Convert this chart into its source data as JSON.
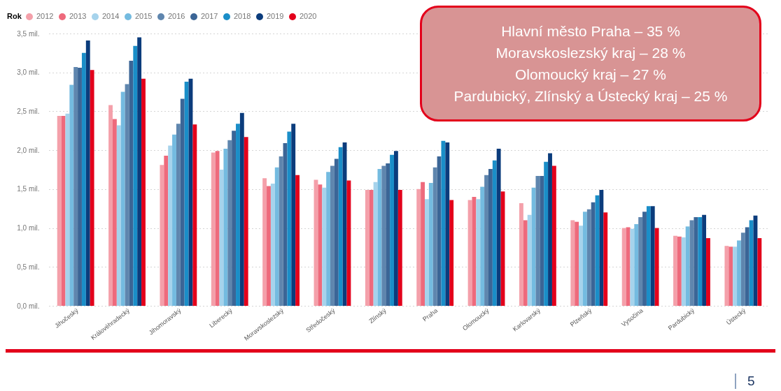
{
  "chart_data": {
    "type": "bar",
    "legend_title": "Rok",
    "legend": "top left",
    "grid": "y",
    "categories": [
      "Jihočeský",
      "Královéhradecký",
      "Jihomoravský",
      "Liberecký",
      "Moravskoslezský",
      "Středočeský",
      "Zlínský",
      "Praha",
      "Olomoucký",
      "Karlovarský",
      "Plzeňský",
      "Vysočina",
      "Pardubický",
      "Ústecký"
    ],
    "ylim": [
      0,
      3.5
    ],
    "yticks": [
      {
        "value": 0,
        "label": "0,0 mil."
      },
      {
        "value": 0.5,
        "label": "0,5 mil."
      },
      {
        "value": 1,
        "label": "1,0 mil."
      },
      {
        "value": 1.5,
        "label": "1,5 mil."
      },
      {
        "value": 2,
        "label": "2,0 mil."
      },
      {
        "value": 2.5,
        "label": "2,5 mil."
      },
      {
        "value": 3,
        "label": "3,0 mil."
      },
      {
        "value": 3.5,
        "label": "3,5 mil."
      }
    ],
    "series": [
      {
        "name": "2012",
        "color": "#f4a0aa",
        "values": [
          2.44,
          2.58,
          1.81,
          1.97,
          1.64,
          1.62,
          1.49,
          1.5,
          1.36,
          1.32,
          1.1,
          1.0,
          0.9,
          0.77
        ]
      },
      {
        "name": "2013",
        "color": "#ee6a7c",
        "values": [
          2.44,
          2.4,
          1.93,
          1.99,
          1.54,
          1.56,
          1.49,
          1.59,
          1.4,
          1.1,
          1.08,
          1.01,
          0.89,
          0.76
        ]
      },
      {
        "name": "2014",
        "color": "#a6d3ec",
        "values": [
          2.47,
          2.32,
          2.06,
          1.75,
          1.57,
          1.52,
          1.59,
          1.37,
          1.37,
          1.17,
          1.03,
          0.99,
          0.88,
          0.76
        ]
      },
      {
        "name": "2015",
        "color": "#74bbe0",
        "values": [
          2.84,
          2.75,
          2.2,
          2.02,
          1.78,
          1.72,
          1.76,
          1.58,
          1.53,
          1.52,
          1.21,
          1.05,
          1.02,
          0.84
        ]
      },
      {
        "name": "2016",
        "color": "#5f86ae",
        "values": [
          3.07,
          2.85,
          2.34,
          2.13,
          1.92,
          1.8,
          1.8,
          1.78,
          1.68,
          1.67,
          1.24,
          1.14,
          1.1,
          0.94
        ]
      },
      {
        "name": "2017",
        "color": "#3b6596",
        "values": [
          3.06,
          3.15,
          2.66,
          2.25,
          2.09,
          1.89,
          1.83,
          1.92,
          1.76,
          1.67,
          1.33,
          1.21,
          1.14,
          1.01
        ]
      },
      {
        "name": "2018",
        "color": "#1a8ec8",
        "values": [
          3.25,
          3.34,
          2.88,
          2.34,
          2.24,
          2.04,
          1.94,
          2.12,
          1.87,
          1.85,
          1.42,
          1.28,
          1.14,
          1.1
        ]
      },
      {
        "name": "2019",
        "color": "#0b3c7c",
        "values": [
          3.41,
          3.45,
          2.92,
          2.48,
          2.34,
          2.1,
          1.99,
          2.1,
          2.02,
          1.96,
          1.49,
          1.28,
          1.17,
          1.16
        ]
      },
      {
        "name": "2020",
        "color": "#e3001b",
        "values": [
          3.03,
          2.92,
          2.33,
          2.17,
          1.68,
          1.61,
          1.49,
          1.36,
          1.47,
          1.8,
          1.2,
          1.0,
          0.87,
          0.87
        ]
      }
    ],
    "annotations": [
      "Hlavní město Praha – 35 %",
      "Moravskoslezský kraj – 28 %",
      "Olomoucký kraj – 27 %",
      "Pardubický, Zlínský a Ústecký kraj – 25 %",
      "5"
    ]
  }
}
